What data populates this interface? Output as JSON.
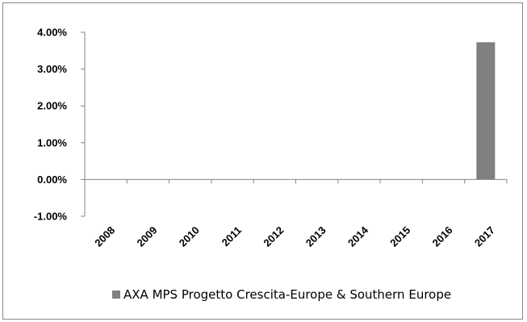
{
  "chart_data": {
    "type": "bar",
    "categories": [
      "2008",
      "2009",
      "2010",
      "2011",
      "2012",
      "2013",
      "2014",
      "2015",
      "2016",
      "2017"
    ],
    "series": [
      {
        "name": "AXA MPS Progetto Crescita-Europe & Southern Europe",
        "values": [
          null,
          null,
          null,
          null,
          null,
          null,
          null,
          null,
          null,
          3.73
        ],
        "color": "#808080"
      }
    ],
    "y_unit": "%",
    "ylim": [
      -1,
      4
    ],
    "yticks": [
      4,
      3,
      2,
      1,
      0,
      -1
    ],
    "ytick_labels": [
      "4.00%",
      "3.00%",
      "2.00%",
      "1.00%",
      "0.00%",
      "-1.00%"
    ],
    "grid": false,
    "legend_position": "bottom"
  }
}
